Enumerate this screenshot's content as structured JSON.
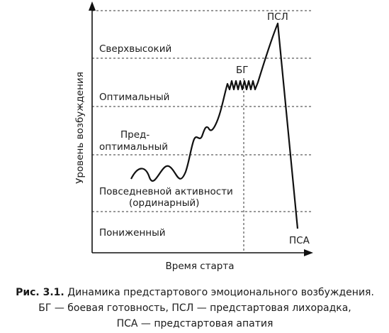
{
  "axes": {
    "y_label": "Уровень возбуждения",
    "x_label": "Время старта"
  },
  "zones": [
    {
      "lines": [
        "Сверхвысокий"
      ]
    },
    {
      "lines": [
        "Оптимальный"
      ]
    },
    {
      "lines": [
        "Пред-",
        "оптимальный"
      ]
    },
    {
      "lines": [
        "Повседневной активности",
        "(ординарный)"
      ]
    },
    {
      "lines": [
        "Пониженный"
      ]
    }
  ],
  "markers": {
    "bg": "БГ",
    "psl": "ПСЛ",
    "psa": "ПСА"
  },
  "caption": {
    "number": "Рис. 3.1.",
    "lines": [
      "Динамика предстартового эмоционального возбуждения.",
      "БГ — боевая готовность, ПСЛ — предстартовая лихорадка,",
      "ПСА — предстартовая апатия"
    ]
  }
}
